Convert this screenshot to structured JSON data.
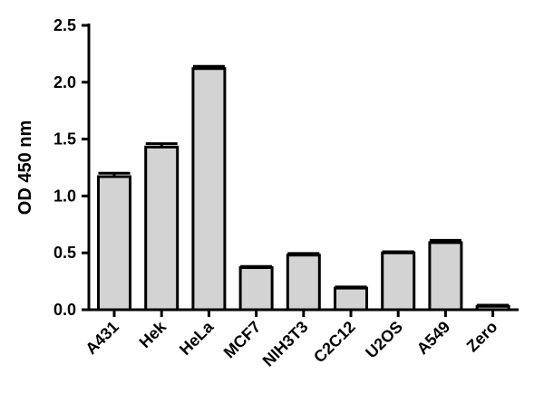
{
  "chart_data": {
    "type": "bar",
    "title": "",
    "xlabel": "",
    "ylabel": "OD 450 nm",
    "ylim": [
      0,
      2.5
    ],
    "yticks": [
      "0.0",
      "0.5",
      "1.0",
      "1.5",
      "2.0",
      "2.5"
    ],
    "categories": [
      "A431",
      "Hek",
      "HeLa",
      "MCF7",
      "NIH3T3",
      "C2C12",
      "U2OS",
      "A549",
      "Zero"
    ],
    "values": [
      1.17,
      1.43,
      2.12,
      0.37,
      0.48,
      0.19,
      0.5,
      0.59,
      0.03
    ],
    "errors": [
      0.03,
      0.03,
      0.02,
      0.01,
      0.015,
      0.01,
      0.01,
      0.02,
      0.01
    ],
    "grid": false,
    "legend": "none",
    "bar_fill": "#d3d3d3",
    "bar_stroke": "#000000"
  }
}
